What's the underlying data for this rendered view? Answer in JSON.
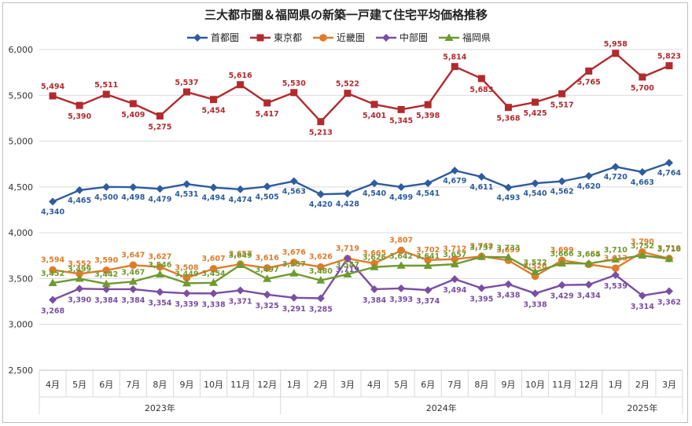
{
  "chart_data": {
    "type": "line",
    "title": "三大都市圏＆福岡県の新築一戸建て住宅平均価格推移",
    "xlabel": "",
    "ylabel": "",
    "ylim": [
      2500,
      6000
    ],
    "yticks": [
      "2,500",
      "3,000",
      "3,500",
      "4,000",
      "4,500",
      "5,000",
      "5,500",
      "6,000"
    ],
    "ytick_values": [
      2500,
      3000,
      3500,
      4000,
      4500,
      5000,
      5500,
      6000
    ],
    "grid": true,
    "legend_position": "top",
    "categories": [
      "4月",
      "5月",
      "6月",
      "7月",
      "8月",
      "9月",
      "10月",
      "11月",
      "12月",
      "1月",
      "2月",
      "3月",
      "4月",
      "5月",
      "6月",
      "7月",
      "8月",
      "9月",
      "10月",
      "11月",
      "12月",
      "1月",
      "2月",
      "3月"
    ],
    "year_groups": [
      {
        "label": "2023年",
        "count": 9
      },
      {
        "label": "2024年",
        "count": 12
      },
      {
        "label": "2025年",
        "count": 3
      }
    ],
    "series": [
      {
        "name": "首都圏",
        "color": "#2e5c9e",
        "marker": "diamond",
        "values": [
          4340,
          4465,
          4500,
          4498,
          4479,
          4531,
          4494,
          4474,
          4505,
          4563,
          4420,
          4428,
          4540,
          4499,
          4541,
          4679,
          4611,
          4493,
          4540,
          4562,
          4620,
          4720,
          4663,
          4764
        ],
        "labels": [
          "4,340",
          "4,465",
          "4,500",
          "4,498",
          "4,479",
          "4,531",
          "4,494",
          "4,474",
          "4,505",
          "4,563",
          "4,420",
          "4,428",
          "4,540",
          "4,499",
          "4,541",
          "4,679",
          "4,611",
          "4,493",
          "4,540",
          "4,562",
          "4,620",
          "4,720",
          "4,663",
          "4,764"
        ]
      },
      {
        "name": "東京都",
        "color": "#b22a2e",
        "marker": "square",
        "values": [
          5494,
          5390,
          5511,
          5409,
          5275,
          5537,
          5454,
          5616,
          5417,
          5530,
          5213,
          5522,
          5401,
          5345,
          5398,
          5814,
          5683,
          5368,
          5425,
          5517,
          5765,
          5958,
          5700,
          5823
        ],
        "labels": [
          "5,494",
          "5,390",
          "5,511",
          "5,409",
          "5,275",
          "5,537",
          "5,454",
          "5,616",
          "5,417",
          "5,530",
          "5,213",
          "5,522",
          "5,401",
          "5,345",
          "5,398",
          "5,814",
          "5,683",
          "5,368",
          "5,425",
          "5,517",
          "5,765",
          "5,958",
          "5,700",
          "5,823"
        ]
      },
      {
        "name": "近畿圏",
        "color": "#e07b2c",
        "marker": "circle",
        "values": [
          3594,
          3552,
          3590,
          3647,
          3627,
          3508,
          3607,
          3657,
          3616,
          3676,
          3626,
          3719,
          3665,
          3807,
          3702,
          3712,
          3742,
          3699,
          3526,
          3699,
          3655,
          3613,
          3790,
          3719
        ],
        "labels": [
          "3,594",
          "3,552",
          "3,590",
          "3,647",
          "3,627",
          "3,508",
          "3,607",
          "3,657",
          "3,616",
          "3,676",
          "3,626",
          "3,719",
          "3,665",
          "3,807",
          "3,702",
          "3,712",
          "3,742",
          "3,699",
          "3,526",
          "3,699",
          "3,655",
          "3,613",
          "3,790",
          "3,719"
        ]
      },
      {
        "name": "中部圏",
        "color": "#7a4ea3",
        "marker": "diamond",
        "values": [
          3268,
          3390,
          3384,
          3384,
          3354,
          3339,
          3338,
          3371,
          3325,
          3291,
          3285,
          3719,
          3384,
          3393,
          3374,
          3494,
          3395,
          3438,
          3338,
          3429,
          3434,
          3539,
          3314,
          3362
        ],
        "labels": [
          "3,268",
          "3,390",
          "3,384",
          "3,384",
          "3,354",
          "3,339",
          "3,338",
          "3,371",
          "3,325",
          "3,291",
          "3,285",
          "3,719",
          "3,384",
          "3,393",
          "3,374",
          "3,494",
          "3,395",
          "3,438",
          "3,338",
          "3,429",
          "3,434",
          "3,539",
          "3,314",
          "3,362"
        ]
      },
      {
        "name": "福岡県",
        "color": "#6e9a2f",
        "marker": "triangle",
        "values": [
          3452,
          3499,
          3442,
          3467,
          3546,
          3449,
          3454,
          3649,
          3497,
          3557,
          3480,
          3547,
          3626,
          3642,
          3641,
          3657,
          3737,
          3733,
          3572,
          3666,
          3664,
          3710,
          3752,
          3716
        ],
        "labels": [
          "3,452",
          "3,499",
          "3,442",
          "3,467",
          "3,546",
          "3,449",
          "3,454",
          "3,649",
          "3,497",
          "3,557",
          "3,480",
          "3,547",
          "3,626",
          "3,642",
          "3,641",
          "3,657",
          "3,737",
          "3,733",
          "3,572",
          "3,666",
          "3,664",
          "3,710",
          "3,752",
          "3,716"
        ]
      }
    ]
  }
}
